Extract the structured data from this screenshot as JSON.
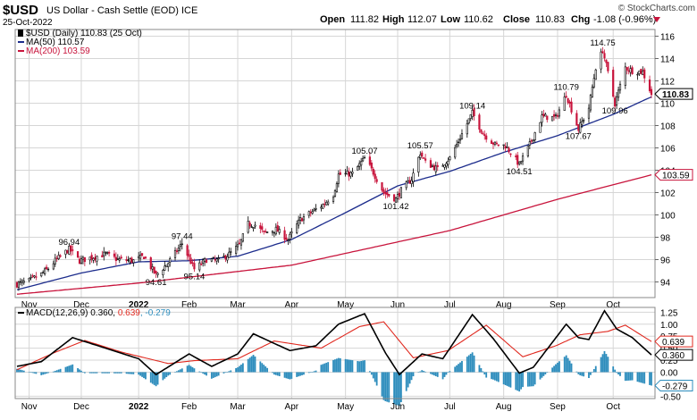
{
  "header": {
    "symbol": "$USD",
    "description": "US Dollar - Cash Settle (EOD) ICE",
    "date": "25-Oct-2022",
    "ohlc": [
      {
        "label": "Open",
        "value": "111.82"
      },
      {
        "label": "High",
        "value": "112.07"
      },
      {
        "label": "Low",
        "value": "110.62"
      },
      {
        "label": "Close",
        "value": "110.83"
      },
      {
        "label": "Chg",
        "value": "-1.08 (-0.96%)"
      }
    ],
    "watermark": "© StockCharts.com"
  },
  "colors": {
    "up": "#000000",
    "down": "#c8143c",
    "ma50": "#1c2c8c",
    "ma200": "#c8143c",
    "macd": "#000000",
    "signal": "#e0281e",
    "histogram": "#2c8cbc",
    "grid": "#d6d6d6",
    "last_label_bg": "#ffffff"
  },
  "chart_data": [
    {
      "type": "candlestick",
      "title": "$USD (Daily) 110.83 (25 Oct)",
      "legend": [
        {
          "name": "$USD (Daily)",
          "text": "$USD (Daily) 110.83 (25 Oct)"
        },
        {
          "name": "MA(50)",
          "text": "MA(50) 110.57"
        },
        {
          "name": "MA(200)",
          "text": "MA(200) 103.59"
        }
      ],
      "ylim": [
        92.6,
        116.6
      ],
      "yticks": [
        94,
        96,
        98,
        100,
        102,
        104,
        106,
        108,
        110,
        112,
        114,
        116
      ],
      "x_labels": [
        "Nov",
        "Dec",
        "2022",
        "Feb",
        "Mar",
        "Apr",
        "May",
        "Jun",
        "Jul",
        "Aug",
        "Sep",
        "Oct"
      ],
      "x_label_dates": [
        "2021-11-01",
        "2021-12-01",
        "2022-01-03",
        "2022-02-01",
        "2022-03-01",
        "2022-04-01",
        "2022-05-02",
        "2022-06-01",
        "2022-07-01",
        "2022-08-01",
        "2022-09-01",
        "2022-10-03"
      ],
      "date_range": [
        "2021-10-25",
        "2022-10-25"
      ],
      "close_anchors": [
        [
          "2021-10-25",
          93.8
        ],
        [
          "2021-11-01",
          94.1
        ],
        [
          "2021-11-08",
          94.7
        ],
        [
          "2021-11-12",
          95.2
        ],
        [
          "2021-11-16",
          95.9
        ],
        [
          "2021-11-24",
          96.94
        ],
        [
          "2021-11-30",
          95.9
        ],
        [
          "2021-12-07",
          96.2
        ],
        [
          "2021-12-15",
          96.5
        ],
        [
          "2021-12-22",
          96.0
        ],
        [
          "2021-12-31",
          95.9
        ],
        [
          "2022-01-06",
          96.3
        ],
        [
          "2022-01-13",
          94.61
        ],
        [
          "2022-01-20",
          95.7
        ],
        [
          "2022-01-28",
          97.44
        ],
        [
          "2022-02-04",
          95.14
        ],
        [
          "2022-02-11",
          96.0
        ],
        [
          "2022-02-18",
          95.9
        ],
        [
          "2022-02-25",
          96.6
        ],
        [
          "2022-03-02",
          97.3
        ],
        [
          "2022-03-07",
          99.2
        ],
        [
          "2022-03-11",
          99.1
        ],
        [
          "2022-03-16",
          98.4
        ],
        [
          "2022-03-23",
          98.7
        ],
        [
          "2022-03-30",
          97.8
        ],
        [
          "2022-04-06",
          99.6
        ],
        [
          "2022-04-13",
          100.3
        ],
        [
          "2022-04-19",
          100.9
        ],
        [
          "2022-04-25",
          101.8
        ],
        [
          "2022-04-28",
          103.6
        ],
        [
          "2022-05-06",
          103.7
        ],
        [
          "2022-05-13",
          105.07
        ],
        [
          "2022-05-18",
          103.8
        ],
        [
          "2022-05-24",
          102.0
        ],
        [
          "2022-05-31",
          101.42
        ],
        [
          "2022-06-03",
          102.2
        ],
        [
          "2022-06-09",
          103.2
        ],
        [
          "2022-06-14",
          105.57
        ],
        [
          "2022-06-17",
          104.7
        ],
        [
          "2022-06-24",
          104.1
        ],
        [
          "2022-07-01",
          105.1
        ],
        [
          "2022-07-06",
          106.6
        ],
        [
          "2022-07-14",
          109.14
        ],
        [
          "2022-07-20",
          107.3
        ],
        [
          "2022-07-27",
          106.3
        ],
        [
          "2022-08-02",
          106.2
        ],
        [
          "2022-08-10",
          104.51
        ],
        [
          "2022-08-16",
          106.3
        ],
        [
          "2022-08-23",
          108.8
        ],
        [
          "2022-08-31",
          108.7
        ],
        [
          "2022-09-06",
          110.79
        ],
        [
          "2022-09-13",
          107.67
        ],
        [
          "2022-09-19",
          109.6
        ],
        [
          "2022-09-23",
          113.2
        ],
        [
          "2022-09-27",
          114.75
        ],
        [
          "2022-10-04",
          109.96
        ],
        [
          "2022-10-10",
          113.2
        ],
        [
          "2022-10-14",
          112.9
        ],
        [
          "2022-10-20",
          112.8
        ],
        [
          "2022-10-25",
          110.83
        ]
      ],
      "ma50_anchors": [
        [
          "2021-10-25",
          93.3
        ],
        [
          "2021-12-01",
          94.8
        ],
        [
          "2022-01-03",
          95.8
        ],
        [
          "2022-02-01",
          95.9
        ],
        [
          "2022-03-01",
          96.3
        ],
        [
          "2022-04-01",
          97.8
        ],
        [
          "2022-05-02",
          100.2
        ],
        [
          "2022-06-01",
          102.6
        ],
        [
          "2022-07-01",
          103.9
        ],
        [
          "2022-08-01",
          105.6
        ],
        [
          "2022-09-01",
          107.1
        ],
        [
          "2022-10-03",
          109.0
        ],
        [
          "2022-10-25",
          110.57
        ]
      ],
      "ma200_anchors": [
        [
          "2021-10-25",
          92.9
        ],
        [
          "2022-01-03",
          93.9
        ],
        [
          "2022-04-01",
          95.5
        ],
        [
          "2022-07-01",
          98.6
        ],
        [
          "2022-09-01",
          101.4
        ],
        [
          "2022-10-25",
          103.59
        ]
      ],
      "annotations": [
        {
          "date": "2021-11-24",
          "value": 96.94,
          "text": "96.94",
          "pos": "above"
        },
        {
          "date": "2022-01-13",
          "value": 94.61,
          "text": "94.61",
          "pos": "below"
        },
        {
          "date": "2022-01-28",
          "value": 97.44,
          "text": "97.44",
          "pos": "above"
        },
        {
          "date": "2022-02-04",
          "value": 95.14,
          "text": "95.14",
          "pos": "below"
        },
        {
          "date": "2022-05-13",
          "value": 105.07,
          "text": "105.07",
          "pos": "above"
        },
        {
          "date": "2022-05-31",
          "value": 101.42,
          "text": "101.42",
          "pos": "below"
        },
        {
          "date": "2022-06-14",
          "value": 105.57,
          "text": "105.57",
          "pos": "above"
        },
        {
          "date": "2022-07-14",
          "value": 109.14,
          "text": "109.14",
          "pos": "above"
        },
        {
          "date": "2022-08-10",
          "value": 104.51,
          "text": "104.51",
          "pos": "below"
        },
        {
          "date": "2022-09-06",
          "value": 110.79,
          "text": "110.79",
          "pos": "above"
        },
        {
          "date": "2022-09-13",
          "value": 107.67,
          "text": "107.67",
          "pos": "below"
        },
        {
          "date": "2022-09-27",
          "value": 114.75,
          "text": "114.75",
          "pos": "above"
        },
        {
          "date": "2022-10-04",
          "value": 109.96,
          "text": "109.96",
          "pos": "below"
        }
      ],
      "last_values": [
        {
          "name": "close",
          "value": 110.83,
          "text": "110.83"
        },
        {
          "name": "ma200",
          "value": 103.59,
          "text": "103.59"
        }
      ]
    },
    {
      "type": "macd",
      "title": "MACD(12,26,9) 0.360, 0.639, -0.279",
      "legend_parts": [
        {
          "name": "label",
          "text": "MACD(12,26,9) 0.360, "
        },
        {
          "name": "signal",
          "text": "0.639"
        },
        {
          "name": "histogram",
          "text": ", -0.279"
        }
      ],
      "ylim": [
        -0.55,
        1.35
      ],
      "yticks": [
        -0.5,
        0.0,
        0.25,
        0.5,
        0.75,
        1.0,
        1.25
      ],
      "ytick_labels": [
        "-0.50",
        "0.00",
        "0.25",
        "0.50",
        "0.75",
        "1.00",
        "1.25"
      ],
      "x_labels": [
        "Nov",
        "Dec",
        "2022",
        "Feb",
        "Mar",
        "Apr",
        "May",
        "Jun",
        "Jul",
        "Aug",
        "Sep",
        "Oct"
      ],
      "macd_anchors": [
        [
          "2021-10-25",
          0.12
        ],
        [
          "2021-11-08",
          0.22
        ],
        [
          "2021-11-26",
          0.72
        ],
        [
          "2021-12-15",
          0.5
        ],
        [
          "2022-01-03",
          0.28
        ],
        [
          "2022-01-13",
          -0.05
        ],
        [
          "2022-02-01",
          0.38
        ],
        [
          "2022-02-14",
          0.12
        ],
        [
          "2022-03-01",
          0.38
        ],
        [
          "2022-03-10",
          0.8
        ],
        [
          "2022-03-31",
          0.45
        ],
        [
          "2022-04-15",
          0.55
        ],
        [
          "2022-04-28",
          1.0
        ],
        [
          "2022-05-13",
          1.22
        ],
        [
          "2022-05-25",
          0.4
        ],
        [
          "2022-06-02",
          -0.05
        ],
        [
          "2022-06-15",
          0.38
        ],
        [
          "2022-06-27",
          0.28
        ],
        [
          "2022-07-14",
          1.2
        ],
        [
          "2022-07-26",
          0.7
        ],
        [
          "2022-08-10",
          -0.02
        ],
        [
          "2022-08-18",
          0.1
        ],
        [
          "2022-09-06",
          1.0
        ],
        [
          "2022-09-13",
          0.72
        ],
        [
          "2022-09-19",
          0.68
        ],
        [
          "2022-09-28",
          1.28
        ],
        [
          "2022-10-05",
          0.9
        ],
        [
          "2022-10-14",
          0.72
        ],
        [
          "2022-10-25",
          0.36
        ]
      ],
      "signal_anchors": [
        [
          "2021-10-25",
          0.05
        ],
        [
          "2021-11-15",
          0.4
        ],
        [
          "2021-12-03",
          0.66
        ],
        [
          "2021-12-24",
          0.42
        ],
        [
          "2022-01-20",
          0.18
        ],
        [
          "2022-02-04",
          0.24
        ],
        [
          "2022-03-01",
          0.28
        ],
        [
          "2022-03-22",
          0.65
        ],
        [
          "2022-04-18",
          0.5
        ],
        [
          "2022-05-10",
          0.95
        ],
        [
          "2022-05-24",
          1.05
        ],
        [
          "2022-06-10",
          0.3
        ],
        [
          "2022-06-30",
          0.45
        ],
        [
          "2022-07-22",
          0.98
        ],
        [
          "2022-08-12",
          0.32
        ],
        [
          "2022-08-31",
          0.55
        ],
        [
          "2022-09-14",
          0.78
        ],
        [
          "2022-09-30",
          0.85
        ],
        [
          "2022-10-10",
          0.98
        ],
        [
          "2022-10-25",
          0.639
        ]
      ]
    }
  ]
}
